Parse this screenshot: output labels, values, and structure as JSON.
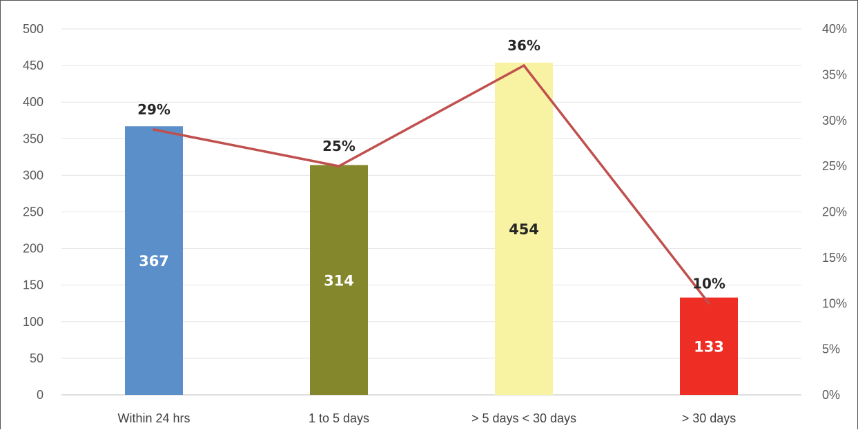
{
  "chart_data": {
    "type": "bar",
    "title": "",
    "categories": [
      "Within 24 hrs",
      "1 to 5 days",
      "> 5 days < 30 days",
      "> 30 days"
    ],
    "series": [
      {
        "type": "bar",
        "axis": "left",
        "values": [
          367,
          314,
          454,
          133
        ],
        "value_labels": [
          "367",
          "314",
          "454",
          "133"
        ],
        "colors": [
          "#5b8fc9",
          "#84872c",
          "#f7f3a2",
          "#ee2d24"
        ],
        "label_colors": [
          "#ffffff",
          "#ffffff",
          "#262626",
          "#ffffff"
        ]
      },
      {
        "type": "line",
        "axis": "right",
        "values": [
          0.29,
          0.25,
          0.36,
          0.1
        ],
        "value_labels": [
          "29%",
          "25%",
          "36%",
          "10%"
        ],
        "color": "#c0504d"
      }
    ],
    "left_axis": {
      "min": 0,
      "max": 500,
      "ticks": [
        "0",
        "50",
        "100",
        "150",
        "200",
        "250",
        "300",
        "350",
        "400",
        "450",
        "500"
      ]
    },
    "right_axis": {
      "min": 0,
      "max": 0.4,
      "ticks": [
        "0%",
        "5%",
        "10%",
        "15%",
        "20%",
        "25%",
        "30%",
        "35%",
        "40%"
      ]
    },
    "grid": true,
    "legend": "none"
  }
}
